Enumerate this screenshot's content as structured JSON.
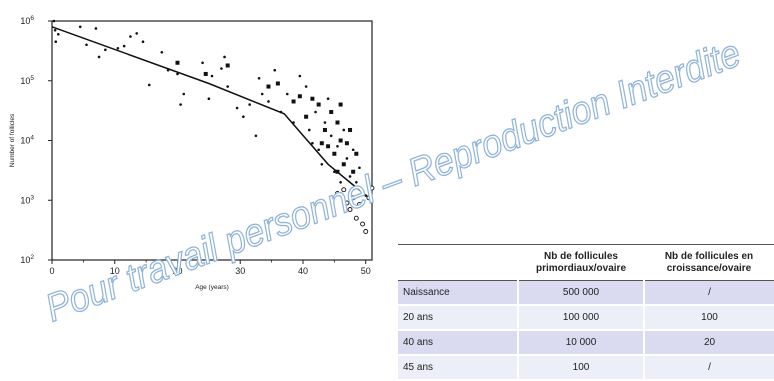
{
  "chart_data": {
    "type": "scatter",
    "title": "",
    "xlabel": "Age (years)",
    "ylabel": "Number of follicles",
    "xlim": [
      0,
      51
    ],
    "ylim": [
      100,
      1000000
    ],
    "yscale": "log",
    "grid": false,
    "x_ticks": [
      0,
      10,
      20,
      30,
      40,
      50
    ],
    "y_ticks": [
      {
        "value": 100,
        "base": "10",
        "exp": "2"
      },
      {
        "value": 1000,
        "base": "10",
        "exp": "3"
      },
      {
        "value": 10000,
        "base": "10",
        "exp": "4"
      },
      {
        "value": 100000,
        "base": "10",
        "exp": "5"
      },
      {
        "value": 1000000,
        "base": "10",
        "exp": "6"
      }
    ],
    "trend_line": {
      "x": [
        0,
        25,
        37,
        44,
        48,
        51
      ],
      "y": [
        800000,
        90000,
        28000,
        4000,
        1800,
        1000
      ]
    },
    "series": [
      {
        "marker": "dot",
        "points": [
          [
            0.3,
            1000000
          ],
          [
            0.5,
            700000
          ],
          [
            0.6,
            450000
          ],
          [
            1.0,
            600000
          ],
          [
            4.5,
            800000
          ],
          [
            5.5,
            400000
          ],
          [
            7.0,
            750000
          ],
          [
            7.5,
            250000
          ],
          [
            8.5,
            330000
          ],
          [
            10.5,
            350000
          ],
          [
            11.5,
            380000
          ],
          [
            12.5,
            550000
          ],
          [
            13.5,
            620000
          ],
          [
            14.5,
            450000
          ],
          [
            15.5,
            85000
          ],
          [
            17.5,
            300000
          ],
          [
            18.5,
            150000
          ],
          [
            20.0,
            130000
          ],
          [
            20.5,
            40000
          ],
          [
            21.0,
            60000
          ],
          [
            24.0,
            200000
          ],
          [
            25.0,
            50000
          ],
          [
            25.5,
            120000
          ],
          [
            27.0,
            160000
          ],
          [
            27.5,
            250000
          ],
          [
            28.0,
            80000
          ],
          [
            29.5,
            35000
          ],
          [
            30.5,
            25000
          ],
          [
            31.5,
            40000
          ],
          [
            32.5,
            12000
          ],
          [
            33.0,
            110000
          ],
          [
            33.5,
            60000
          ],
          [
            34.5,
            45000
          ],
          [
            35.5,
            150000
          ],
          [
            36.5,
            30000
          ],
          [
            37.5,
            60000
          ],
          [
            38.5,
            20000
          ],
          [
            39.5,
            120000
          ],
          [
            40.5,
            80000
          ],
          [
            41.0,
            15000
          ],
          [
            41.5,
            9000
          ],
          [
            42.0,
            30000
          ],
          [
            42.5,
            7000
          ],
          [
            43.0,
            4000
          ],
          [
            43.5,
            20000
          ],
          [
            44.0,
            50000
          ],
          [
            44.5,
            12000
          ],
          [
            45.0,
            3000
          ],
          [
            45.5,
            8000
          ],
          [
            46.0,
            2000
          ],
          [
            46.5,
            15000
          ],
          [
            47.0,
            5000
          ],
          [
            47.5,
            2500
          ],
          [
            48.0,
            7000
          ],
          [
            48.5,
            2000
          ],
          [
            49.0,
            3500
          ],
          [
            50.0,
            1200
          ],
          [
            50.5,
            1800
          ]
        ]
      },
      {
        "marker": "square",
        "points": [
          [
            20.0,
            200000
          ],
          [
            24.5,
            130000
          ],
          [
            28.0,
            180000
          ],
          [
            34.5,
            80000
          ],
          [
            36.0,
            90000
          ],
          [
            38.5,
            45000
          ],
          [
            39.5,
            55000
          ],
          [
            40.5,
            25000
          ],
          [
            41.5,
            50000
          ],
          [
            42.5,
            40000
          ],
          [
            43.5,
            15000
          ],
          [
            44.0,
            8000
          ],
          [
            44.5,
            30000
          ],
          [
            45.0,
            6000
          ],
          [
            45.5,
            20000
          ],
          [
            46.0,
            10000
          ],
          [
            46.5,
            4000
          ],
          [
            47.0,
            9000
          ],
          [
            47.5,
            15000
          ],
          [
            48.0,
            3000
          ],
          [
            48.5,
            6000
          ],
          [
            45.5,
            3000
          ],
          [
            43.0,
            9000
          ],
          [
            46.0,
            40000
          ]
        ]
      },
      {
        "marker": "open-circle",
        "points": [
          [
            46.5,
            1500
          ],
          [
            47.0,
            900
          ],
          [
            47.5,
            700
          ],
          [
            48.0,
            1100
          ],
          [
            48.5,
            500
          ],
          [
            49.0,
            850
          ],
          [
            49.5,
            400
          ],
          [
            50.0,
            300
          ],
          [
            50.5,
            1100
          ],
          [
            51.0,
            1600
          ],
          [
            45.5,
            1300
          ]
        ]
      }
    ],
    "style": {
      "marker_color": "#111111",
      "line_color": "#111111",
      "axis_color": "#222222"
    }
  },
  "table": {
    "headers": [
      "",
      "Nb de follicules\nprimordiaux/ovaire",
      "Nb de follicules en\ncroissance/ovaire"
    ],
    "rows": [
      {
        "label": "Naissance",
        "primordiaux": "500 000",
        "croissance": "/"
      },
      {
        "label": "20 ans",
        "primordiaux": "100 000",
        "croissance": "100"
      },
      {
        "label": "40 ans",
        "primordiaux": "10 000",
        "croissance": "20"
      },
      {
        "label": "45 ans",
        "primordiaux": "100",
        "croissance": "/"
      }
    ],
    "colors": {
      "row_odd": "#dadbf0",
      "row_even": "#eceef8"
    }
  },
  "watermark": {
    "text": "Pour travail personnel – Reproduction Interdite",
    "color": "#8fb3d9"
  }
}
